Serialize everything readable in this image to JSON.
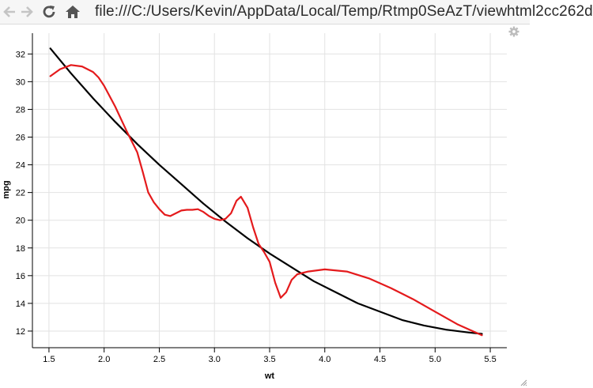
{
  "browser": {
    "url": "file:///C:/Users/Kevin/AppData/Local/Temp/Rtmp0SeAzT/viewhtml2cc262d",
    "icons": [
      "back-arrow-icon",
      "forward-arrow-icon",
      "reload-icon",
      "home-icon",
      "page-icon",
      "gear-icon",
      "resize-grip-icon"
    ]
  },
  "chart_data": {
    "type": "line",
    "xlabel": "wt",
    "ylabel": "mpg",
    "xlim": [
      1.35,
      5.65
    ],
    "ylim": [
      10.8,
      33.5
    ],
    "x_ticks": [
      1.5,
      2.0,
      2.5,
      3.0,
      3.5,
      4.0,
      4.5,
      5.0,
      5.5
    ],
    "y_ticks": [
      12,
      14,
      16,
      18,
      20,
      22,
      24,
      26,
      28,
      30,
      32
    ],
    "grid": true,
    "series": [
      {
        "color": "#000000",
        "x": [
          1.513,
          1.7,
          1.9,
          2.1,
          2.3,
          2.5,
          2.7,
          2.9,
          3.1,
          3.3,
          3.5,
          3.7,
          3.9,
          4.1,
          4.3,
          4.5,
          4.7,
          4.9,
          5.1,
          5.3,
          5.424
        ],
        "y": [
          32.4,
          30.6,
          28.8,
          27.1,
          25.5,
          24.0,
          22.6,
          21.2,
          19.9,
          18.7,
          17.6,
          16.6,
          15.6,
          14.8,
          14.0,
          13.4,
          12.8,
          12.4,
          12.1,
          11.9,
          11.8
        ]
      },
      {
        "color": "#e41a1c",
        "x": [
          1.513,
          1.6,
          1.7,
          1.8,
          1.9,
          1.95,
          2.0,
          2.1,
          2.2,
          2.3,
          2.35,
          2.4,
          2.45,
          2.5,
          2.55,
          2.6,
          2.65,
          2.7,
          2.75,
          2.8,
          2.85,
          2.9,
          2.95,
          3.0,
          3.05,
          3.1,
          3.15,
          3.2,
          3.24,
          3.3,
          3.35,
          3.4,
          3.45,
          3.5,
          3.55,
          3.6,
          3.65,
          3.7,
          3.75,
          3.85,
          4.0,
          4.2,
          4.4,
          4.6,
          4.8,
          5.0,
          5.2,
          5.424
        ],
        "y": [
          30.4,
          30.9,
          31.2,
          31.1,
          30.7,
          30.3,
          29.7,
          28.2,
          26.5,
          24.9,
          23.5,
          22.0,
          21.3,
          20.8,
          20.4,
          20.3,
          20.5,
          20.7,
          20.75,
          20.75,
          20.8,
          20.6,
          20.3,
          20.1,
          20.0,
          20.1,
          20.5,
          21.4,
          21.7,
          20.9,
          19.5,
          18.3,
          17.7,
          17.0,
          15.5,
          14.4,
          14.8,
          15.7,
          16.1,
          16.3,
          16.45,
          16.3,
          15.8,
          15.1,
          14.3,
          13.4,
          12.5,
          11.7
        ]
      }
    ]
  }
}
